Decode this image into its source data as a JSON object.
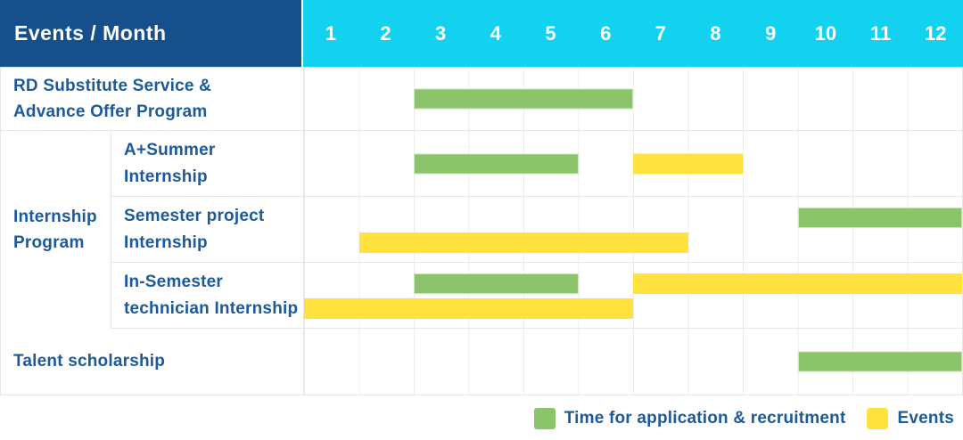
{
  "palette": {
    "header_bg": "#15508c",
    "months_bg": "#12d2f0",
    "green": "#8bc46a",
    "yellow": "#ffe23e",
    "label_blue": "#1c5a9a",
    "border": "#e6e6e6"
  },
  "header": {
    "corner_label": "Events / Month",
    "months": [
      "1",
      "2",
      "3",
      "4",
      "5",
      "6",
      "7",
      "8",
      "9",
      "10",
      "11",
      "12"
    ]
  },
  "group": {
    "label": "Internship\nProgram"
  },
  "rows": [
    {
      "label": "RD Substitute Service &\nAdvance Offer Program",
      "bars": [
        {
          "color": "green",
          "start": 3,
          "end": 7,
          "lane": "mid"
        }
      ]
    },
    {
      "label": "A+Summer\nInternship",
      "bars": [
        {
          "color": "green",
          "start": 3,
          "end": 6,
          "lane": "mid"
        },
        {
          "color": "yellow",
          "start": 7,
          "end": 9,
          "lane": "mid"
        }
      ]
    },
    {
      "label": "Semester project\nInternship",
      "bars": [
        {
          "color": "green",
          "start": 10,
          "end": 13,
          "lane": "upper"
        },
        {
          "color": "yellow",
          "start": 2,
          "end": 8,
          "lane": "lower"
        }
      ]
    },
    {
      "label": "In-Semester\ntechnician Internship",
      "bars": [
        {
          "color": "green",
          "start": 3,
          "end": 6,
          "lane": "upper"
        },
        {
          "color": "yellow",
          "start": 7,
          "end": 13,
          "lane": "upper"
        },
        {
          "color": "yellow",
          "start": 1,
          "end": 7,
          "lane": "lower"
        }
      ]
    },
    {
      "label": "Talent scholarship",
      "bars": [
        {
          "color": "green",
          "start": 10,
          "end": 13,
          "lane": "mid"
        }
      ]
    }
  ],
  "legend": [
    {
      "swatch": "green",
      "label": "Time for application & recruitment"
    },
    {
      "swatch": "yellow",
      "label": "Events"
    }
  ],
  "chart_data": {
    "type": "table",
    "title": "Events / Month",
    "x_axis": {
      "label": "Month",
      "ticks": [
        1,
        2,
        3,
        4,
        5,
        6,
        7,
        8,
        9,
        10,
        11,
        12
      ]
    },
    "gantt_rows": [
      {
        "event": "RD Substitute Service & Advance Offer Program",
        "group": null,
        "application_recruitment_months": [
          [
            3,
            6
          ]
        ],
        "event_months": []
      },
      {
        "event": "A+Summer Internship",
        "group": "Internship Program",
        "application_recruitment_months": [
          [
            3,
            5
          ]
        ],
        "event_months": [
          [
            7,
            8
          ]
        ]
      },
      {
        "event": "Semester project Internship",
        "group": "Internship Program",
        "application_recruitment_months": [
          [
            10,
            12
          ]
        ],
        "event_months": [
          [
            2,
            7
          ]
        ]
      },
      {
        "event": "In-Semester technician Internship",
        "group": "Internship Program",
        "application_recruitment_months": [
          [
            3,
            5
          ]
        ],
        "event_months": [
          [
            7,
            12
          ],
          [
            1,
            6
          ]
        ]
      },
      {
        "event": "Talent scholarship",
        "group": null,
        "application_recruitment_months": [
          [
            10,
            12
          ]
        ],
        "event_months": []
      }
    ],
    "legend": [
      "Time for application & recruitment",
      "Events"
    ],
    "legend_position": "bottom-right"
  }
}
